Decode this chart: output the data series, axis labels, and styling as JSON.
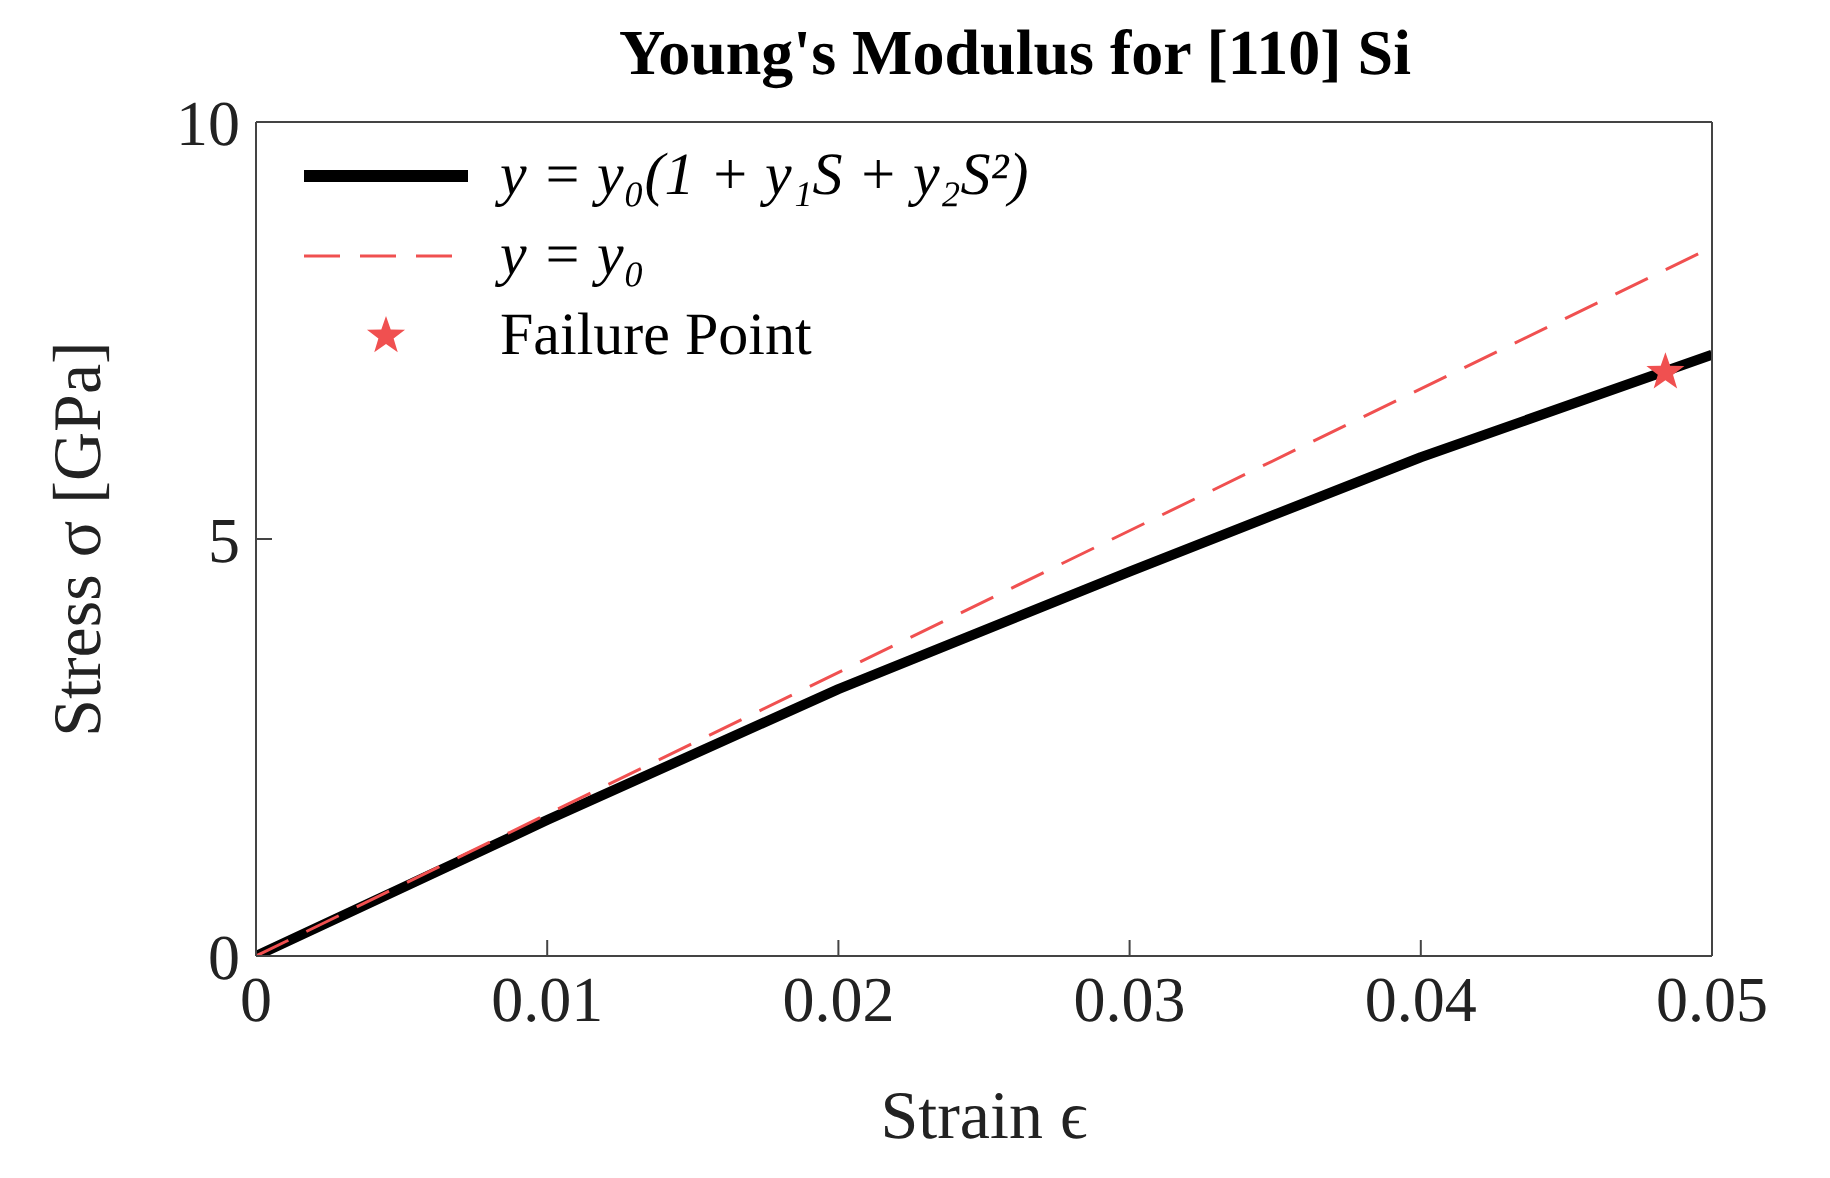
{
  "chart_data": {
    "type": "line",
    "title": "Young's Modulus for [110] Si",
    "xlabel": "Strain ϵ",
    "ylabel": "Stress σ [GPa]",
    "xlim": [
      0,
      0.05
    ],
    "xticks": [
      0,
      0.01,
      0.02,
      0.03,
      0.04,
      0.05
    ],
    "ylim": [
      0,
      10
    ],
    "yticks": [
      0,
      5,
      10
    ],
    "legend": "top left",
    "series": [
      {
        "name": "y = y₀(1 + y₁S + y₂S²)",
        "color": "#000000",
        "line_style": "solid",
        "marker": "none",
        "x": [
          0,
          0.01,
          0.02,
          0.03,
          0.04,
          0.05
        ],
        "values": [
          0,
          1.63,
          3.2,
          4.61,
          5.98,
          7.21
        ]
      },
      {
        "name": "y = y₀",
        "color": "#f05050",
        "line_style": "dashed",
        "marker": "none",
        "x": [
          0,
          0.05
        ],
        "values": [
          0,
          8.5
        ]
      },
      {
        "name": "Failure Point",
        "type": "scatter",
        "color": "#f05050",
        "marker": "star",
        "x": [
          0.0484
        ],
        "values": [
          7.0
        ]
      }
    ]
  }
}
